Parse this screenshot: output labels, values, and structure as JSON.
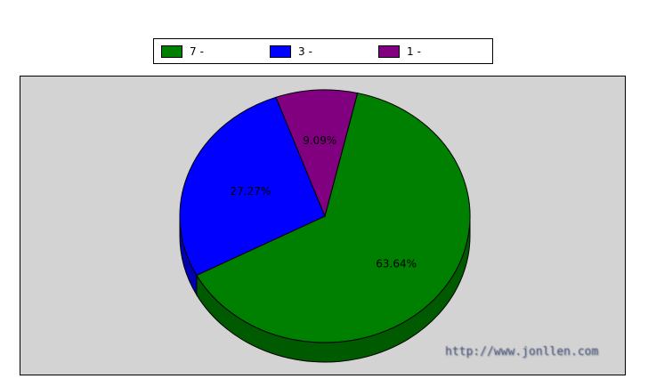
{
  "chart_data": {
    "type": "pie",
    "title": "",
    "legend_placement": "top",
    "slices": [
      {
        "legend_count": "7",
        "legend_separator": "-",
        "label": "",
        "value": 63.64,
        "value_label": "63.64%",
        "color": "#008000",
        "side_color": "#005a00"
      },
      {
        "legend_count": "3",
        "legend_separator": "-",
        "label": "",
        "value": 27.27,
        "value_label": "27.27%",
        "color": "#0000ff",
        "side_color": "#0000b0"
      },
      {
        "legend_count": "1",
        "legend_separator": "-",
        "label": "",
        "value": 9.09,
        "value_label": "9.09%",
        "color": "#800080",
        "side_color": "#5a005a"
      }
    ]
  },
  "watermark": "http://www.jonllen.com"
}
